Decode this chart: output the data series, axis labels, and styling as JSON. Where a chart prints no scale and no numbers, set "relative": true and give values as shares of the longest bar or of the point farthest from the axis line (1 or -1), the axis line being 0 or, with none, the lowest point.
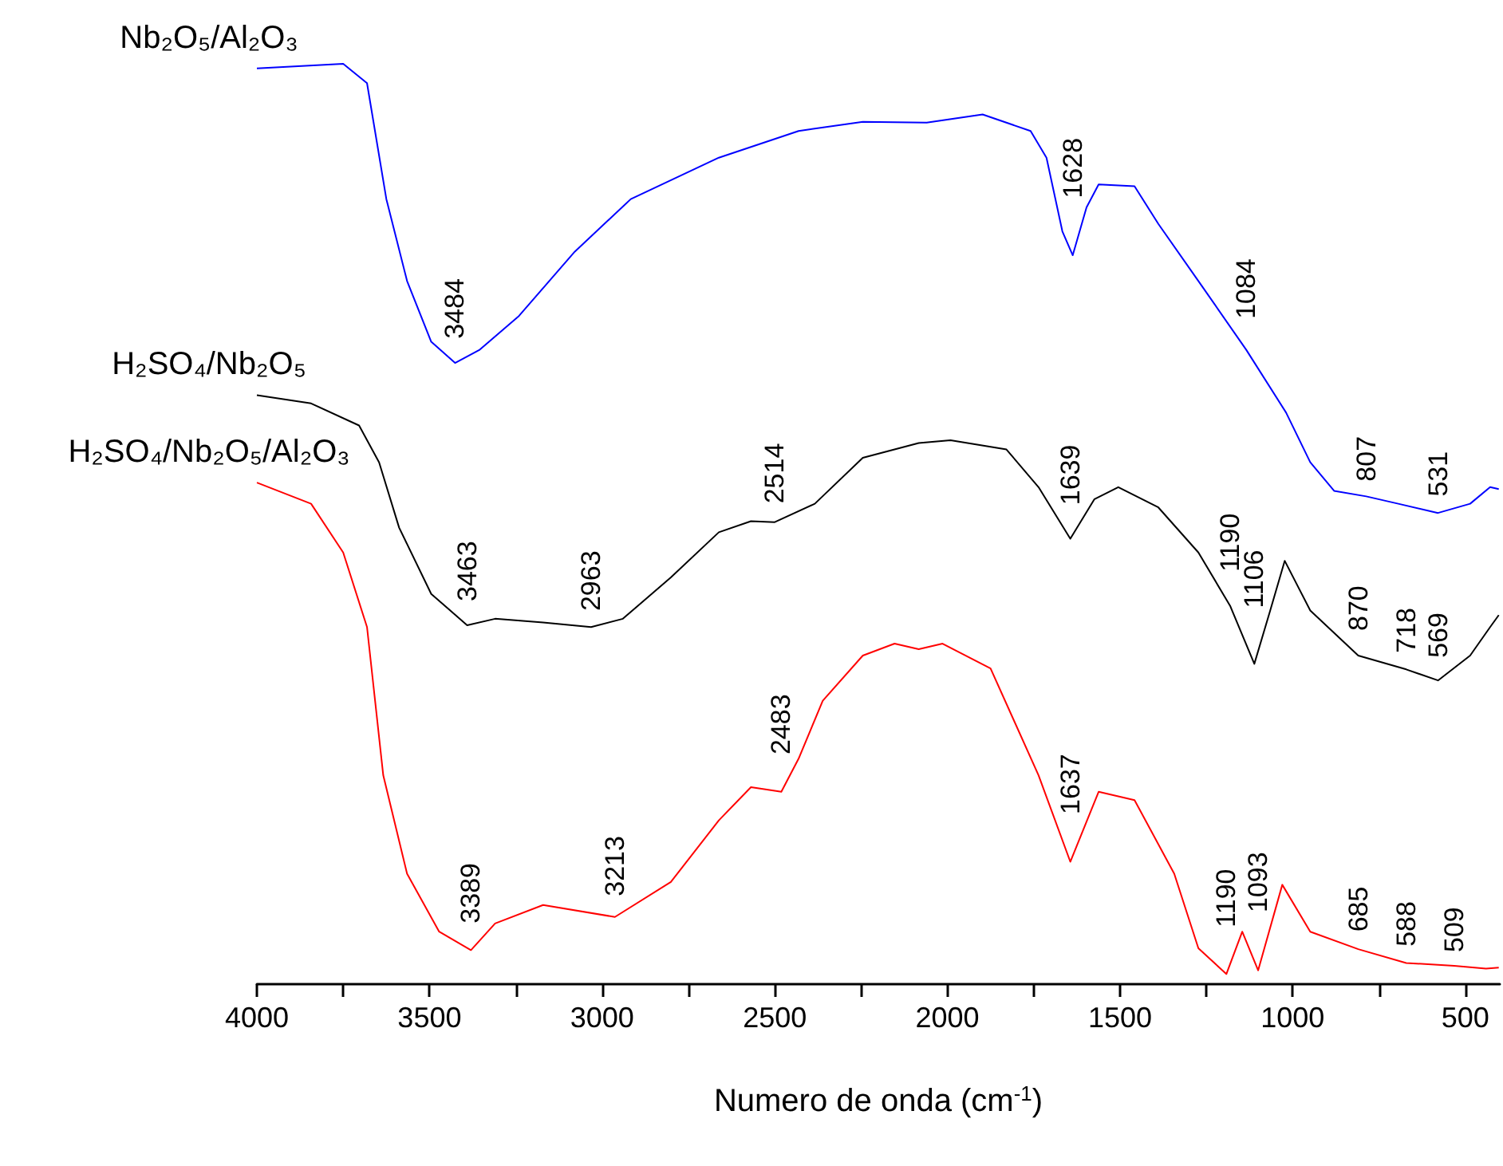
{
  "chart_data": {
    "type": "line",
    "relative": true,
    "marker": "none",
    "xlabel": "Numero de onda (cm$^{-1}$)",
    "xlim": [
      4000,
      400
    ],
    "xticks": [
      4000,
      {
        "value": 3750,
        "label": null
      },
      3500,
      {
        "value": 3250,
        "label": null
      },
      3000,
      {
        "value": 2750,
        "label": null
      },
      2500,
      {
        "value": 2250,
        "label": null
      },
      2000,
      {
        "value": 1750,
        "label": null
      },
      1500,
      {
        "value": 1250,
        "label": null
      },
      1000,
      {
        "value": 750,
        "label": null
      },
      500
    ],
    "series": [
      {
        "name": "Nb₂O₅/Al₂O₃",
        "color": "#0000ff",
        "x": [
          4000,
          3750,
          3681,
          3625,
          3565,
          3495,
          3426,
          3356,
          3241,
          3079,
          2917,
          2662,
          2431,
          2245,
          2060,
          1898,
          1759,
          1713,
          1667,
          1637,
          1597,
          1562,
          1458,
          1389,
          1273,
          1134,
          1019,
          949,
          880,
          787,
          694,
          579,
          486,
          428,
          403
        ],
        "values": [
          0.995,
          1.0,
          0.979,
          0.853,
          0.764,
          0.698,
          0.675,
          0.689,
          0.726,
          0.796,
          0.853,
          0.898,
          0.927,
          0.937,
          0.936,
          0.945,
          0.927,
          0.898,
          0.818,
          0.792,
          0.844,
          0.869,
          0.867,
          0.826,
          0.764,
          0.689,
          0.621,
          0.567,
          0.536,
          0.53,
          0.522,
          0.512,
          0.522,
          0.54,
          0.538
        ]
      },
      {
        "name": "H₂SO₄/Nb₂O₅",
        "color": "#000000",
        "x": [
          4000,
          3843,
          3704,
          3646,
          3588,
          3495,
          3391,
          3310,
          3171,
          3032,
          2940,
          2801,
          2662,
          2569,
          2500,
          2384,
          2245,
          2083,
          1991,
          1829,
          1736,
          1644,
          1574,
          1505,
          1389,
          1273,
          1181,
          1111,
          1065,
          1023,
          949,
          810,
          671,
          579,
          486,
          428,
          403
        ],
        "values": [
          0.64,
          0.631,
          0.607,
          0.567,
          0.496,
          0.424,
          0.39,
          0.397,
          0.393,
          0.388,
          0.397,
          0.442,
          0.491,
          0.503,
          0.502,
          0.522,
          0.572,
          0.588,
          0.591,
          0.581,
          0.54,
          0.484,
          0.527,
          0.54,
          0.518,
          0.469,
          0.411,
          0.348,
          0.406,
          0.46,
          0.406,
          0.357,
          0.342,
          0.33,
          0.357,
          0.388,
          0.401
        ]
      },
      {
        "name": "H₂SO₄/Nb₂O₅/Al₂O₃",
        "color": "#ff0000",
        "x": [
          4000,
          3843,
          3750,
          3681,
          3634,
          3565,
          3472,
          3380,
          3310,
          3171,
          2963,
          2801,
          2662,
          2569,
          2481,
          2431,
          2361,
          2245,
          2153,
          2083,
          2014,
          1875,
          1736,
          1644,
          1562,
          1458,
          1343,
          1273,
          1192,
          1146,
          1100,
          1030,
          949,
          810,
          671,
          532,
          440,
          403
        ],
        "values": [
          0.545,
          0.522,
          0.469,
          0.388,
          0.227,
          0.12,
          0.057,
          0.037,
          0.066,
          0.086,
          0.073,
          0.111,
          0.178,
          0.214,
          0.209,
          0.245,
          0.308,
          0.357,
          0.37,
          0.364,
          0.37,
          0.343,
          0.227,
          0.133,
          0.209,
          0.2,
          0.12,
          0.039,
          0.011,
          0.057,
          0.015,
          0.108,
          0.057,
          0.038,
          0.023,
          0.02,
          0.017,
          0.018
        ]
      }
    ],
    "annotations": [
      {
        "text": "3484",
        "x": 3426,
        "y": 0.675
      },
      {
        "text": "1628",
        "x": 1637,
        "y": 0.792
      },
      {
        "text": "1084",
        "x": 1134,
        "y": 0.689
      },
      {
        "text": "807",
        "x": 787,
        "y": 0.53
      },
      {
        "text": "531",
        "x": 579,
        "y": 0.512
      },
      {
        "text": "3463",
        "x": 3391,
        "y": 0.39
      },
      {
        "text": "2963",
        "x": 3032,
        "y": 0.388
      },
      {
        "text": "2514",
        "x": 2500,
        "y": 0.502
      },
      {
        "text": "1639",
        "x": 1644,
        "y": 0.484
      },
      {
        "text": "1190",
        "x": 1181,
        "y": 0.411
      },
      {
        "text": "1106",
        "x": 1111,
        "y": 0.348
      },
      {
        "text": "870",
        "x": 810,
        "y": 0.357
      },
      {
        "text": "718",
        "x": 671,
        "y": 0.342
      },
      {
        "text": "569",
        "x": 579,
        "y": 0.33
      },
      {
        "text": "3389",
        "x": 3380,
        "y": 0.037
      },
      {
        "text": "3213",
        "x": 2963,
        "y": 0.073
      },
      {
        "text": "2483",
        "x": 2481,
        "y": 0.209
      },
      {
        "text": "1637",
        "x": 1644,
        "y": 0.133
      },
      {
        "text": "1190",
        "x": 1192,
        "y": 0.011
      },
      {
        "text": "1093",
        "x": 1100,
        "y": 0.015
      },
      {
        "text": "685",
        "x": 810,
        "y": 0.038
      },
      {
        "text": "588",
        "x": 671,
        "y": 0.023
      },
      {
        "text": "509",
        "x": 532,
        "y": 0.02
      }
    ]
  }
}
